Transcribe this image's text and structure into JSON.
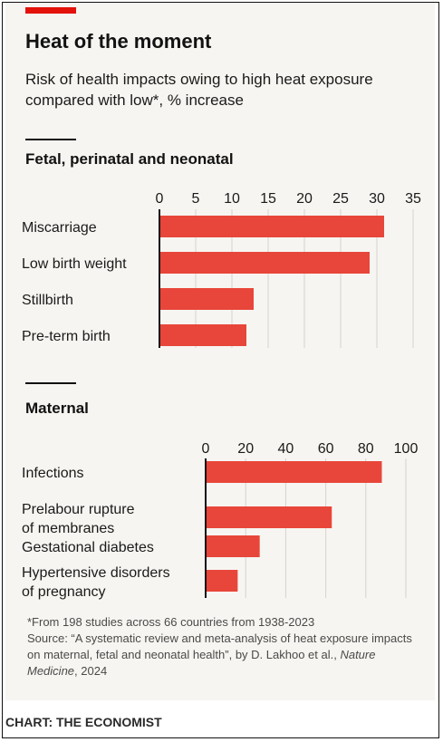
{
  "header": {
    "title": "Heat of the moment",
    "subtitle": "Risk of health impacts owing to high heat exposure compared with low*, % increase"
  },
  "colors": {
    "bar": "#e8463a",
    "accent": "#e3120b",
    "grid": "#d6d3cd",
    "axis": "#121212",
    "background": "#f7f5f1"
  },
  "chart_data": [
    {
      "type": "bar",
      "orientation": "horizontal",
      "title": "Fetal, perinatal and neonatal",
      "categories": [
        "Miscarriage",
        "Low birth weight",
        "Stillbirth",
        "Pre-term birth"
      ],
      "values": [
        31,
        29,
        13,
        12
      ],
      "xlim": [
        0,
        35
      ],
      "ticks": [
        "0",
        "5",
        "10",
        "15",
        "20",
        "25",
        "30",
        "35"
      ],
      "tick_values": [
        0,
        5,
        10,
        15,
        20,
        25,
        30,
        35
      ],
      "grid": true
    },
    {
      "type": "bar",
      "orientation": "horizontal",
      "title": "Maternal",
      "categories": [
        [
          "Infections"
        ],
        [
          "Prelabour rupture",
          "of membranes"
        ],
        [
          "Gestational diabetes"
        ],
        [
          "Hypertensive disorders",
          "of pregnancy"
        ]
      ],
      "values": [
        88,
        63,
        27,
        16
      ],
      "xlim": [
        0,
        100
      ],
      "ticks": [
        "0",
        "20",
        "40",
        "60",
        "80",
        "100"
      ],
      "tick_values": [
        0,
        20,
        40,
        60,
        80,
        100
      ],
      "grid": true
    }
  ],
  "footnote": {
    "line1": "*From 198 studies across 66 countries from 1938-2023",
    "source_main": "Source: “A systematic review and meta-analysis of heat exposure impacts on maternal, fetal and neonatal health”, by D. Lakhoo et al., ",
    "journal": "Nature Medicine",
    "year": ", 2024"
  },
  "credit": "CHART: THE ECONOMIST"
}
